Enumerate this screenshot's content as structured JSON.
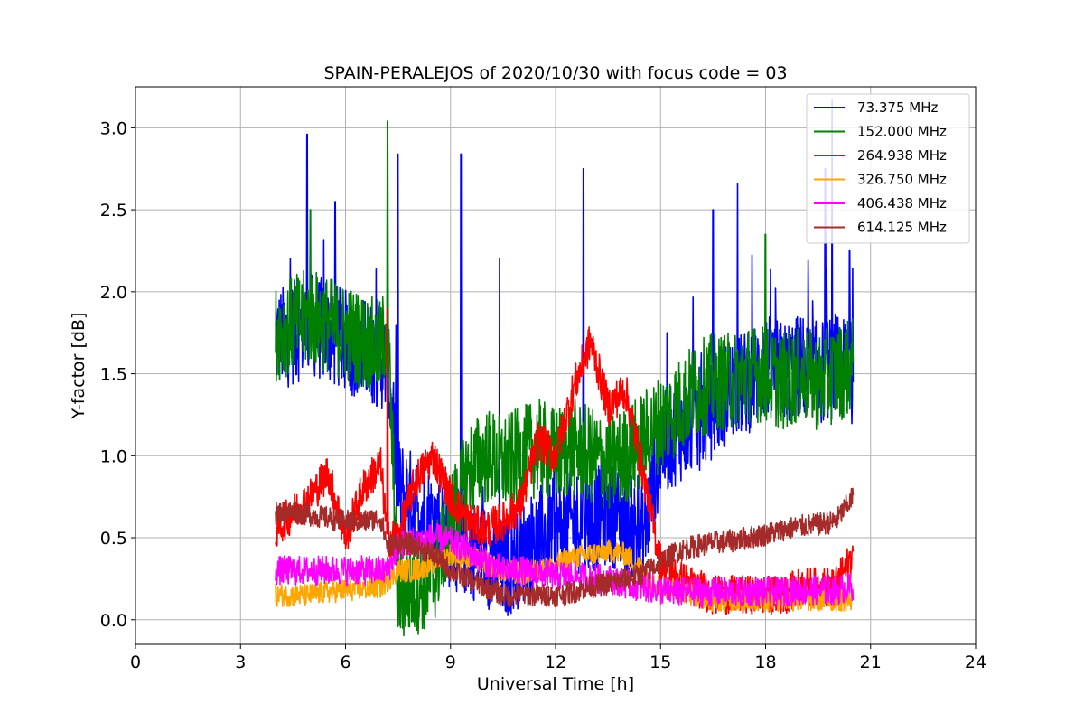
{
  "chart_data": {
    "type": "line",
    "title": "SPAIN-PERALEJOS of 2020/10/30 with focus code = 03",
    "xlabel": "Universal Time [h]",
    "ylabel": "Y-factor [dB]",
    "xlim": [
      0,
      24
    ],
    "ylim": [
      -0.15,
      3.25
    ],
    "xticks": [
      0,
      3,
      6,
      9,
      12,
      15,
      18,
      21,
      24
    ],
    "xtick_labels": [
      "0",
      "3",
      "6",
      "9",
      "12",
      "15",
      "18",
      "21",
      "24"
    ],
    "yticks": [
      0.0,
      0.5,
      1.0,
      1.5,
      2.0,
      2.5,
      3.0
    ],
    "ytick_labels": [
      "0.0",
      "0.5",
      "1.0",
      "1.5",
      "2.0",
      "2.5",
      "3.0"
    ],
    "grid": true,
    "legend_position": "top-right",
    "series": [
      {
        "name": " 73.375 MHz",
        "color": "#0000ff",
        "x": [
          4.0,
          4.5,
          5.0,
          5.5,
          6.0,
          6.5,
          7.0,
          7.2,
          7.5,
          8.0,
          8.5,
          9.0,
          9.5,
          10.0,
          10.5,
          11.0,
          11.5,
          12.0,
          12.5,
          13.0,
          13.5,
          14.0,
          14.5,
          15.0,
          15.5,
          16.0,
          16.5,
          17.0,
          17.5,
          18.0,
          18.5,
          19.0,
          19.5,
          20.0,
          20.5
        ],
        "values": [
          1.7,
          1.75,
          1.8,
          1.75,
          1.7,
          1.65,
          1.6,
          1.55,
          0.8,
          0.7,
          0.6,
          0.5,
          0.45,
          0.4,
          0.3,
          0.4,
          0.5,
          0.55,
          0.6,
          0.6,
          0.65,
          0.6,
          0.5,
          1.05,
          1.15,
          1.2,
          1.3,
          1.4,
          1.45,
          1.55,
          1.5,
          1.55,
          1.5,
          1.55,
          1.5
        ],
        "spikes": [
          [
            4.9,
            2.96
          ],
          [
            5.7,
            2.55
          ],
          [
            7.5,
            2.84
          ],
          [
            9.3,
            2.84
          ],
          [
            10.4,
            2.2
          ],
          [
            12.8,
            2.75
          ],
          [
            16.5,
            2.5
          ],
          [
            17.2,
            2.66
          ],
          [
            19.7,
            2.75
          ],
          [
            19.9,
            3.1
          ],
          [
            20.4,
            2.25
          ]
        ]
      },
      {
        "name": "152.000 MHz",
        "color": "#008000",
        "x": [
          4.0,
          4.5,
          5.0,
          5.5,
          6.0,
          6.5,
          7.0,
          7.2,
          7.5,
          8.0,
          8.5,
          9.0,
          9.5,
          10.0,
          10.5,
          11.0,
          11.5,
          12.0,
          12.5,
          13.0,
          13.5,
          14.0,
          14.5,
          15.0,
          15.5,
          16.0,
          16.5,
          17.0,
          17.5,
          18.0,
          18.5,
          19.0,
          19.5,
          20.0,
          20.5
        ],
        "values": [
          1.75,
          1.8,
          1.85,
          1.8,
          1.75,
          1.7,
          1.65,
          1.8,
          0.15,
          0.2,
          0.25,
          0.6,
          0.9,
          1.0,
          0.95,
          1.0,
          1.05,
          1.0,
          1.05,
          1.0,
          0.95,
          1.0,
          1.1,
          1.2,
          1.3,
          1.4,
          1.45,
          1.45,
          1.5,
          1.5,
          1.45,
          1.5,
          1.45,
          1.5,
          1.55
        ],
        "spikes": [
          [
            7.2,
            3.04
          ],
          [
            5.0,
            2.5
          ],
          [
            18.0,
            2.35
          ]
        ]
      },
      {
        "name": "264.938 MHz",
        "color": "#ff0000",
        "x": [
          4.0,
          4.5,
          5.0,
          5.5,
          6.0,
          6.5,
          7.0,
          7.2,
          7.5,
          8.0,
          8.5,
          9.0,
          9.5,
          10.0,
          10.5,
          11.0,
          11.5,
          12.0,
          12.5,
          13.0,
          13.5,
          14.0,
          14.5,
          15.0,
          15.5,
          16.0,
          16.5,
          17.0,
          17.5,
          18.0,
          18.5,
          19.0,
          19.5,
          20.0,
          20.5
        ],
        "values": [
          0.55,
          0.65,
          0.75,
          0.9,
          0.5,
          0.8,
          0.95,
          0.5,
          0.5,
          0.85,
          1.0,
          0.75,
          0.6,
          0.55,
          0.6,
          0.7,
          1.1,
          1.0,
          1.4,
          1.7,
          1.3,
          1.4,
          0.9,
          0.35,
          0.25,
          0.2,
          0.15,
          0.15,
          0.15,
          0.15,
          0.15,
          0.2,
          0.2,
          0.2,
          0.4
        ],
        "spikes": [
          [
            7.2,
            1.9
          ]
        ]
      },
      {
        "name": "326.750 MHz",
        "color": "#ffa500",
        "x": [
          4.0,
          4.5,
          5.0,
          5.5,
          6.0,
          6.5,
          7.0,
          7.5,
          8.0,
          8.5,
          9.0,
          9.5,
          10.0,
          10.5,
          11.0,
          11.5,
          12.0,
          12.5,
          13.0,
          13.5,
          14.0,
          14.5,
          15.0,
          15.5,
          16.0,
          16.5,
          17.0,
          17.5,
          18.0,
          18.5,
          19.0,
          19.5,
          20.0,
          20.5
        ],
        "values": [
          0.15,
          0.15,
          0.15,
          0.17,
          0.18,
          0.19,
          0.2,
          0.3,
          0.3,
          0.35,
          0.4,
          0.38,
          0.35,
          0.3,
          0.28,
          0.3,
          0.33,
          0.38,
          0.4,
          0.42,
          0.4,
          0.3,
          0.2,
          0.18,
          0.15,
          0.12,
          0.12,
          0.12,
          0.12,
          0.12,
          0.12,
          0.12,
          0.12,
          0.12
        ],
        "spikes": []
      },
      {
        "name": "406.438 MHz",
        "color": "#ff00ff",
        "x": [
          4.0,
          4.5,
          5.0,
          5.5,
          6.0,
          6.5,
          7.0,
          7.2,
          7.5,
          8.0,
          8.5,
          9.0,
          9.5,
          10.0,
          10.5,
          11.0,
          11.5,
          12.0,
          12.5,
          13.0,
          13.5,
          14.0,
          14.5,
          15.0,
          15.5,
          16.0,
          16.5,
          17.0,
          17.5,
          18.0,
          18.5,
          19.0,
          19.5,
          20.0,
          20.5
        ],
        "values": [
          0.3,
          0.3,
          0.3,
          0.3,
          0.3,
          0.3,
          0.3,
          0.3,
          0.45,
          0.48,
          0.5,
          0.48,
          0.42,
          0.35,
          0.3,
          0.3,
          0.28,
          0.27,
          0.27,
          0.25,
          0.25,
          0.22,
          0.2,
          0.18,
          0.17,
          0.17,
          0.17,
          0.17,
          0.17,
          0.17,
          0.17,
          0.18,
          0.18,
          0.18,
          0.2
        ],
        "spikes": []
      },
      {
        "name": "614.125 MHz",
        "color": "#a52a2a",
        "x": [
          4.0,
          4.5,
          5.0,
          5.5,
          6.0,
          6.5,
          7.0,
          7.2,
          7.5,
          8.0,
          8.5,
          9.0,
          9.5,
          10.0,
          10.5,
          11.0,
          11.5,
          12.0,
          12.5,
          13.0,
          13.5,
          14.0,
          14.5,
          15.0,
          15.5,
          16.0,
          16.5,
          17.0,
          17.5,
          18.0,
          18.5,
          19.0,
          19.5,
          20.0,
          20.5
        ],
        "values": [
          0.65,
          0.66,
          0.64,
          0.62,
          0.6,
          0.6,
          0.62,
          0.45,
          0.47,
          0.45,
          0.4,
          0.3,
          0.25,
          0.2,
          0.15,
          0.15,
          0.15,
          0.15,
          0.17,
          0.2,
          0.22,
          0.25,
          0.28,
          0.35,
          0.42,
          0.45,
          0.47,
          0.48,
          0.5,
          0.52,
          0.55,
          0.57,
          0.58,
          0.6,
          0.75
        ],
        "spikes": []
      }
    ]
  }
}
